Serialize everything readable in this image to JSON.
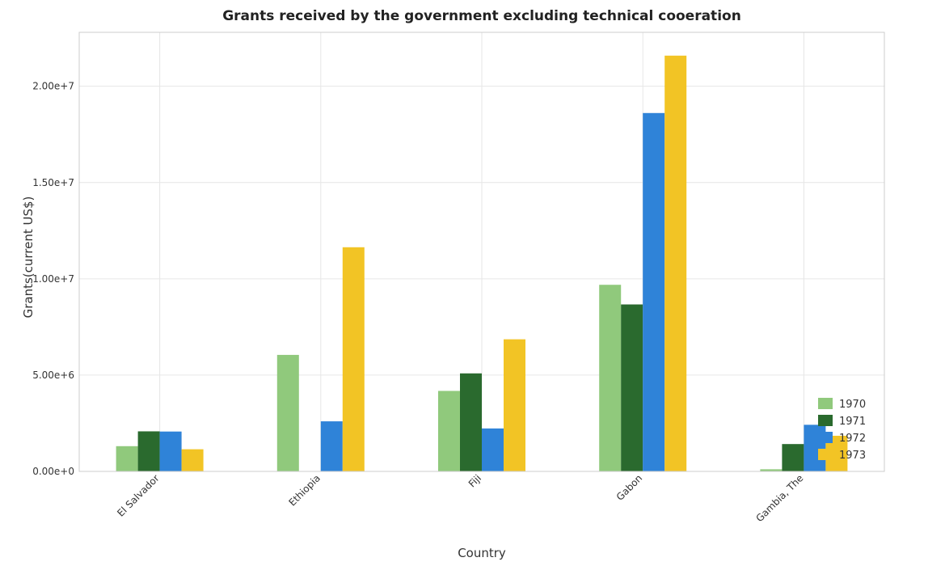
{
  "chart_data": {
    "type": "bar",
    "title": "Grants received by the government excluding technical cooeration",
    "xlabel": "Country",
    "ylabel": "Grants(current US$)",
    "categories": [
      "El Salvador",
      "Ethiopia",
      "Fiji",
      "Gabon",
      "Gambia, The"
    ],
    "series": [
      {
        "name": "1970",
        "color": "#90c97c",
        "values": [
          1310000,
          6050000,
          4180000,
          9690000,
          110000
        ]
      },
      {
        "name": "1971",
        "color": "#2a6a2e",
        "values": [
          2080000,
          0,
          5090000,
          8670000,
          1420000
        ]
      },
      {
        "name": "1972",
        "color": "#2f83d8",
        "values": [
          2070000,
          2600000,
          2230000,
          18610000,
          2420000
        ]
      },
      {
        "name": "1973",
        "color": "#f2c425",
        "values": [
          1150000,
          11640000,
          6860000,
          21590000,
          1850000
        ]
      }
    ],
    "yticks": [
      0,
      5000000,
      10000000,
      15000000,
      20000000
    ],
    "ytick_labels": [
      "0.00e+0",
      "5.00e+6",
      "1.00e+7",
      "1.50e+7",
      "2.00e+7"
    ],
    "ylim": [
      0,
      22800000
    ],
    "grid": true,
    "legend": "bottom-right"
  }
}
